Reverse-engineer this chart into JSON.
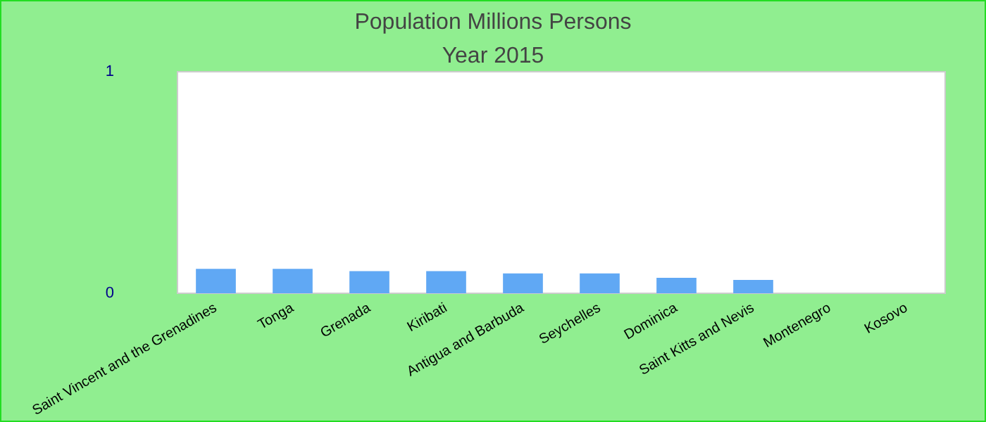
{
  "chart_data": {
    "type": "bar",
    "title": "Population Millions Persons",
    "subtitle": "Year 2015",
    "categories": [
      "Saint Vincent and the Grenadines",
      "Tonga",
      "Grenada",
      "Kiribati",
      "Antigua and Barbuda",
      "Seychelles",
      "Dominica",
      "Saint Kitts and Nevis",
      "Montenegro",
      "Kosovo"
    ],
    "values": [
      0.11,
      0.11,
      0.1,
      0.1,
      0.09,
      0.09,
      0.07,
      0.06,
      null,
      null
    ],
    "color": "#60a8f4",
    "ylim": [
      0,
      1
    ],
    "yticks": [
      0,
      1
    ],
    "grid": false
  }
}
